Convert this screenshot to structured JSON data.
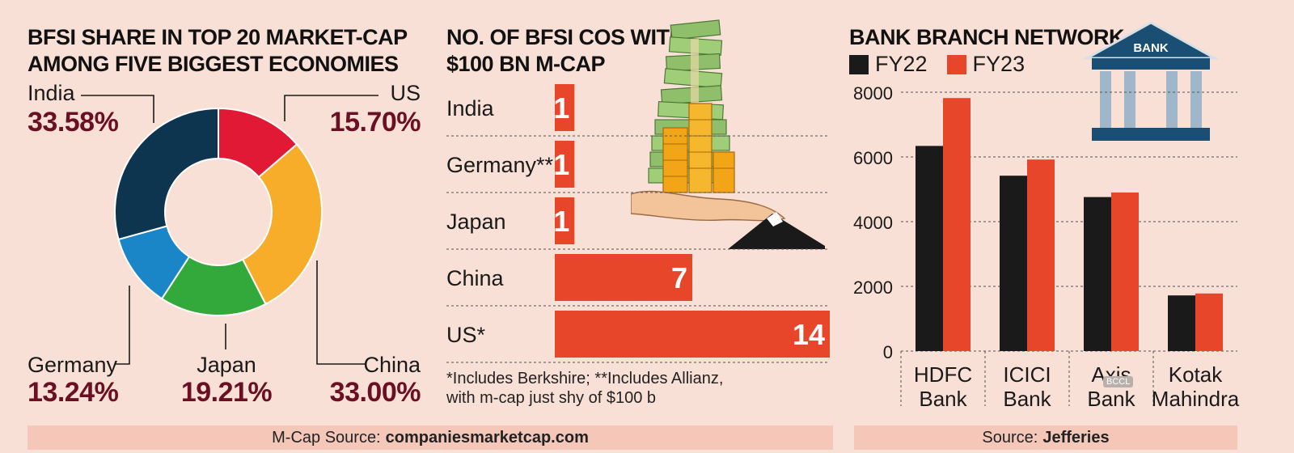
{
  "chart_data": [
    {
      "type": "pie",
      "title_lines": [
        "BFSI SHARE IN TOP 20 MARKET-CAP",
        "AMONG FIVE BIGGEST ECONOMIES"
      ],
      "slices": [
        {
          "label": "US",
          "value": 15.7,
          "display": "15.70%",
          "color": "#e11935"
        },
        {
          "label": "China",
          "value": 33.0,
          "display": "33.00%",
          "color": "#f7ac2a"
        },
        {
          "label": "Japan",
          "value": 19.21,
          "display": "19.21%",
          "color": "#34a93b"
        },
        {
          "label": "Germany",
          "value": 13.24,
          "display": "13.24%",
          "color": "#1a86c8"
        },
        {
          "label": "India",
          "value": 33.58,
          "display": "33.58%",
          "color": "#0e3550"
        }
      ]
    },
    {
      "type": "bar",
      "orientation": "horizontal",
      "title_lines": [
        "NO. OF BFSI COS WITH",
        "$100 BN M-CAP"
      ],
      "categories": [
        "India",
        "Germany**",
        "Japan",
        "China",
        "US*"
      ],
      "values": [
        1,
        1,
        1,
        7,
        14
      ],
      "color": "#e8462a",
      "xlim": [
        0,
        14
      ],
      "notes": [
        "*Includes Berkshire;  **Includes Allianz,",
        "with m-cap just shy of $100 b"
      ]
    },
    {
      "type": "bar",
      "title": "BANK BRANCH NETWORK",
      "categories": [
        [
          "HDFC",
          "Bank"
        ],
        [
          "ICICI",
          "Bank"
        ],
        [
          "Axis",
          "Bank"
        ],
        [
          "Kotak",
          "Mahindra"
        ]
      ],
      "series": [
        {
          "name": "FY22",
          "color": "#1a1a1a",
          "values": [
            6340,
            5420,
            4760,
            1720
          ]
        },
        {
          "name": "FY23",
          "color": "#e8462a",
          "values": [
            7820,
            5920,
            4900,
            1780
          ]
        }
      ],
      "ylim": [
        0,
        8000
      ],
      "yticks": [
        0,
        2000,
        4000,
        6000,
        8000
      ],
      "grid": true,
      "legend": "top-left"
    }
  ],
  "sources": {
    "left_prefix": "M-Cap Source:",
    "left_name": "companiesmarketcap.com",
    "right_prefix": "Source:",
    "right_name": "Jefferies"
  },
  "illustration": {
    "bank_sign": "BANK",
    "watermark": "BCCL"
  }
}
